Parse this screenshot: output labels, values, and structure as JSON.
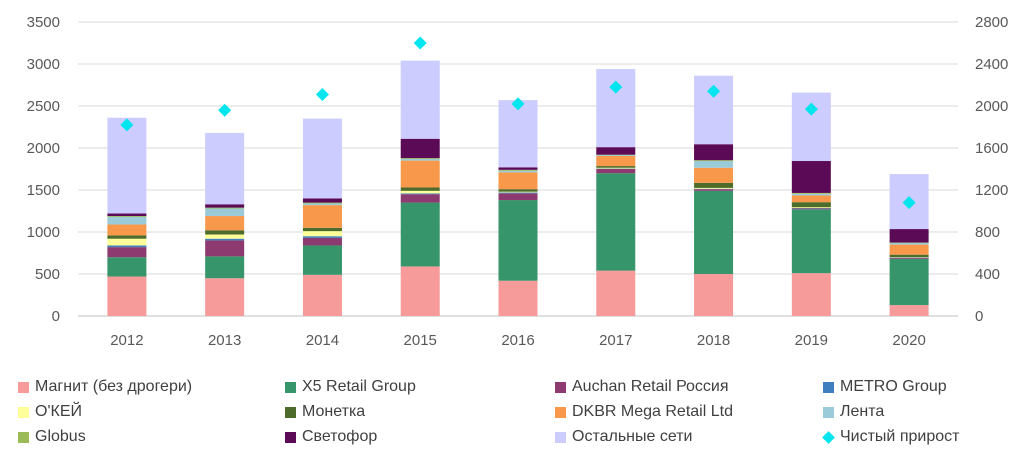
{
  "chart_data": {
    "type": "bar",
    "stacked": true,
    "categories": [
      "2012",
      "2013",
      "2014",
      "2015",
      "2016",
      "2017",
      "2018",
      "2019",
      "2020"
    ],
    "y_left": {
      "min": 0,
      "max": 3500,
      "ticks": [
        0,
        500,
        1000,
        1500,
        2000,
        2500,
        3000,
        3500
      ]
    },
    "y_right": {
      "min": 0,
      "max": 2800,
      "ticks": [
        0,
        400,
        800,
        1200,
        1600,
        2000,
        2400,
        2800
      ]
    },
    "grid": true,
    "series": [
      {
        "name": "Магнит (без дрогери)",
        "color": "#f79a9a",
        "values": [
          470,
          450,
          490,
          590,
          420,
          540,
          500,
          510,
          130
        ]
      },
      {
        "name": "X5 Retail Group",
        "color": "#36956a",
        "values": [
          230,
          260,
          350,
          760,
          960,
          1160,
          990,
          760,
          550
        ]
      },
      {
        "name": "Auchan Retail Россия",
        "color": "#8c3a70",
        "values": [
          120,
          190,
          90,
          100,
          80,
          50,
          20,
          10,
          10
        ]
      },
      {
        "name": "METRO Group",
        "color": "#3f7fbf",
        "values": [
          20,
          20,
          20,
          10,
          10,
          5,
          5,
          5,
          5
        ]
      },
      {
        "name": "О'КЕЙ",
        "color": "#ffff99",
        "values": [
          80,
          50,
          60,
          30,
          10,
          10,
          10,
          10,
          5
        ]
      },
      {
        "name": "Монетка",
        "color": "#4d6b2a",
        "values": [
          40,
          50,
          40,
          40,
          30,
          20,
          60,
          60,
          30
        ]
      },
      {
        "name": "DKBR Mega Retail Ltd",
        "color": "#f7984a",
        "values": [
          130,
          170,
          270,
          320,
          200,
          120,
          180,
          80,
          120
        ]
      },
      {
        "name": "Лента",
        "color": "#9bcbd8",
        "values": [
          90,
          90,
          20,
          20,
          20,
          10,
          80,
          20,
          20
        ]
      },
      {
        "name": "Globus",
        "color": "#9bbb59",
        "values": [
          10,
          10,
          10,
          10,
          10,
          5,
          10,
          10,
          5
        ]
      },
      {
        "name": "Светофор",
        "color": "#5b0a55",
        "values": [
          30,
          40,
          50,
          230,
          30,
          90,
          190,
          380,
          160
        ]
      },
      {
        "name": "Остальные сети",
        "color": "#ccccff",
        "values": [
          1140,
          850,
          950,
          930,
          800,
          930,
          815,
          815,
          655
        ]
      }
    ],
    "line_series": {
      "name": "Чистый прирост",
      "axis": "right",
      "marker": "diamond",
      "color": "#00e5ee",
      "values": [
        1820,
        1960,
        2110,
        2600,
        2020,
        2180,
        2140,
        1970,
        1080
      ]
    },
    "legend_position": "bottom"
  }
}
